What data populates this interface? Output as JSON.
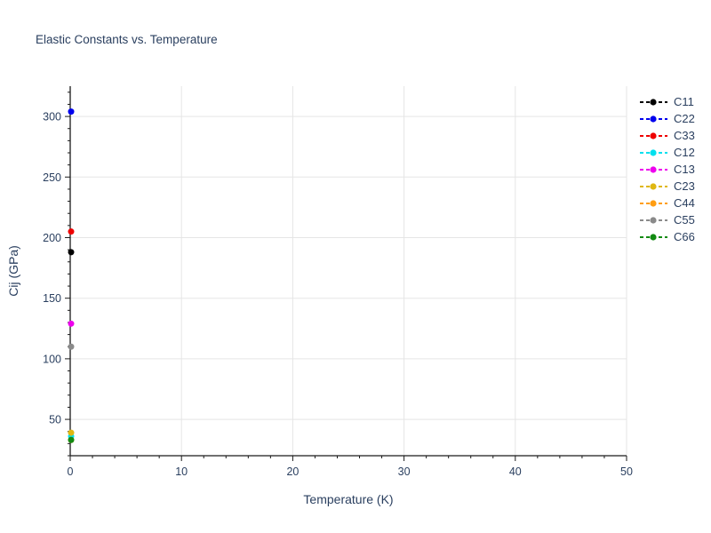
{
  "chart_data": {
    "type": "scatter",
    "mode": "dashed-lines+markers",
    "title": "Elastic Constants vs. Temperature",
    "xlabel": "Temperature (K)",
    "ylabel": "Cij (GPa)",
    "xlim": [
      0,
      50
    ],
    "ylim": [
      20,
      325
    ],
    "xticks": [
      0,
      10,
      20,
      30,
      40,
      50
    ],
    "yticks": [
      50,
      100,
      150,
      200,
      250,
      300
    ],
    "x_minor_step": 2,
    "y_minor_step": 10,
    "grid": true,
    "legend_position": "right",
    "x": [
      0
    ],
    "series": [
      {
        "name": "C11",
        "color": "#000000",
        "values": [
          188
        ]
      },
      {
        "name": "C22",
        "color": "#0000ee",
        "values": [
          304
        ]
      },
      {
        "name": "C33",
        "color": "#ee0000",
        "values": [
          205
        ]
      },
      {
        "name": "C12",
        "color": "#00e0ee",
        "values": [
          36
        ]
      },
      {
        "name": "C13",
        "color": "#ee00ee",
        "values": [
          129
        ]
      },
      {
        "name": "C23",
        "color": "#dfb712",
        "values": [
          39
        ]
      },
      {
        "name": "C44",
        "color": "#ff9d12",
        "values": [
          33
        ]
      },
      {
        "name": "C55",
        "color": "#8a8a8a",
        "values": [
          110
        ]
      },
      {
        "name": "C66",
        "color": "#128a12",
        "values": [
          33
        ]
      }
    ],
    "colors": {
      "text": "#2a3f5f",
      "axis": "#1a1a1a",
      "grid": "#e5e5e5",
      "background": "#ffffff"
    },
    "marker_size_px": 7
  }
}
